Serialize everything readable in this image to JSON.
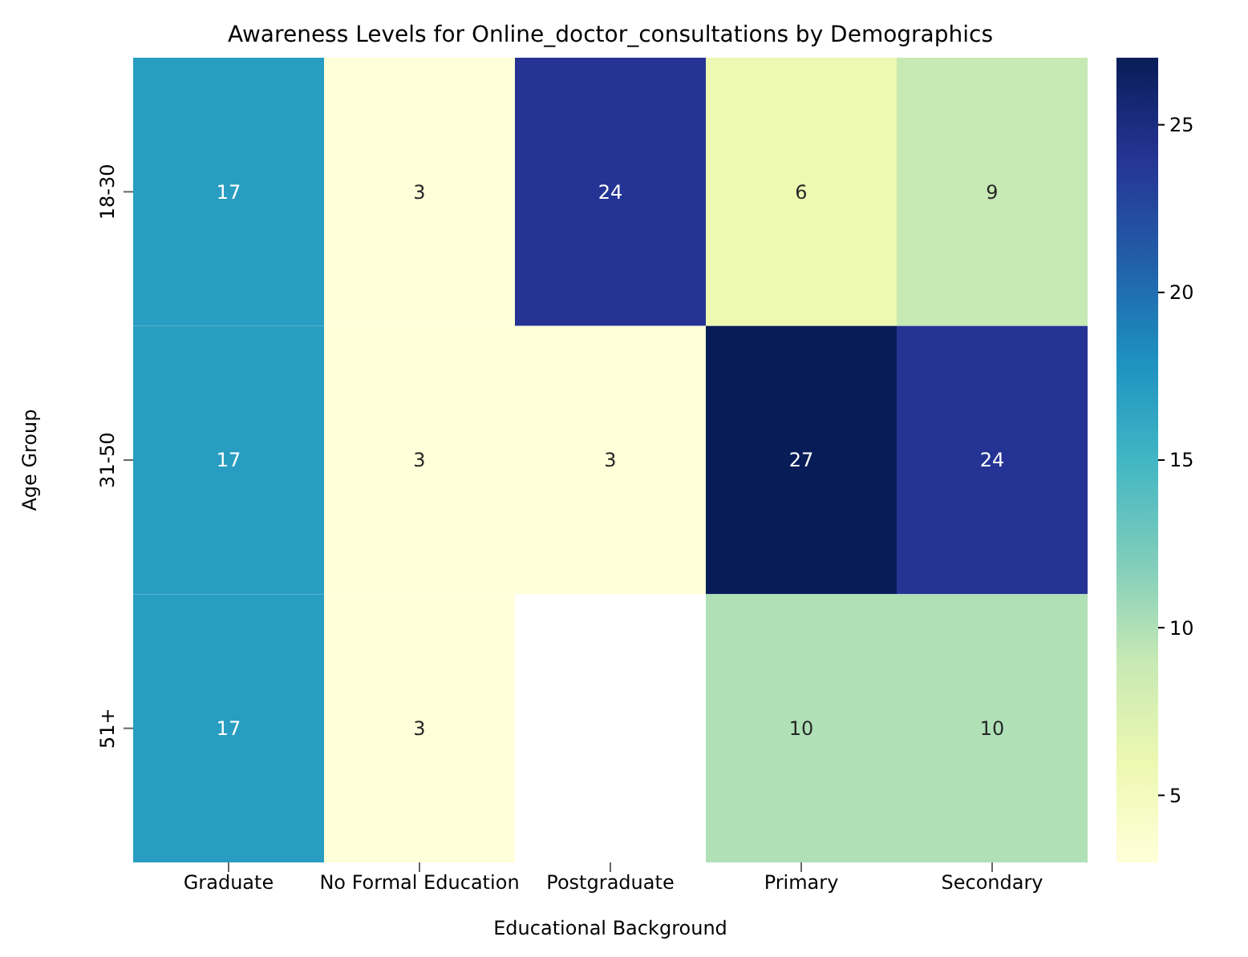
{
  "chart_data": {
    "type": "heatmap",
    "title": "Awareness Levels for Online_doctor_consultations by Demographics",
    "xlabel": "Educational Background",
    "ylabel": "Age Group",
    "categories": [
      "Graduate",
      "No Formal Education",
      "Postgraduate",
      "Primary",
      "Secondary"
    ],
    "y_categories": [
      "18-30",
      "31-50",
      "51+"
    ],
    "cells": [
      [
        17,
        3,
        24,
        6,
        9
      ],
      [
        17,
        3,
        3,
        27,
        24
      ],
      [
        17,
        3,
        null,
        10,
        10
      ]
    ],
    "clim": [
      3,
      27
    ],
    "cticks": [
      5,
      10,
      15,
      20,
      25
    ],
    "data_labels": true
  }
}
